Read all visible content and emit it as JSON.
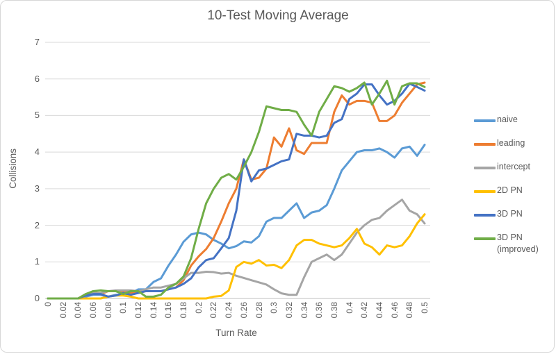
{
  "chart": {
    "title": "10-Test Moving Average",
    "x_axis_label": "Turn Rate",
    "y_axis_label": "Collisions"
  },
  "legend": {
    "position": "right",
    "items": [
      "naive",
      "leading",
      "intercept",
      "2D PN",
      "3D PN",
      "3D PN (improved)"
    ]
  },
  "colors": {
    "grid_line": "#d9d9d9",
    "axis_line": "#bfbfbf",
    "text": "#595959"
  },
  "chart_data": {
    "type": "line",
    "title": "10-Test Moving Average",
    "xlabel": "Turn Rate",
    "ylabel": "Collisions",
    "xlim": [
      0,
      0.5
    ],
    "ylim": [
      0,
      7
    ],
    "grid": "horizontal",
    "legend_position": "right",
    "y_ticks": [
      0,
      1,
      2,
      3,
      4,
      5,
      6,
      7
    ],
    "x_ticks": [
      "0",
      "0.02",
      "0.04",
      "0.06",
      "0.08",
      "0.1",
      "0.12",
      "0.14",
      "0.16",
      "0.18",
      "0.2",
      "0.22",
      "0.24",
      "0.26",
      "0.28",
      "0.3",
      "0.32",
      "0.34",
      "0.36",
      "0.38",
      "0.4",
      "0.42",
      "0.44",
      "0.46",
      "0.48",
      "0.5"
    ],
    "x": [
      0,
      0.01,
      0.02,
      0.03,
      0.04,
      0.05,
      0.06,
      0.07,
      0.08,
      0.09,
      0.1,
      0.11,
      0.12,
      0.13,
      0.14,
      0.15,
      0.16,
      0.17,
      0.18,
      0.19,
      0.2,
      0.21,
      0.22,
      0.23,
      0.24,
      0.25,
      0.26,
      0.27,
      0.28,
      0.29,
      0.3,
      0.31,
      0.32,
      0.33,
      0.34,
      0.35,
      0.36,
      0.37,
      0.38,
      0.39,
      0.4,
      0.41,
      0.42,
      0.43,
      0.44,
      0.45,
      0.46,
      0.47,
      0.48,
      0.49,
      0.5
    ],
    "series": [
      {
        "name": "naive",
        "color": "#5B9BD5",
        "values": [
          0,
          0,
          0,
          0,
          0,
          0.05,
          0.1,
          0.1,
          0.05,
          0.1,
          0.1,
          0.15,
          0.25,
          0.25,
          0.45,
          0.55,
          0.9,
          1.2,
          1.55,
          1.75,
          1.8,
          1.75,
          1.6,
          1.5,
          1.37,
          1.43,
          1.56,
          1.53,
          1.7,
          2.1,
          2.2,
          2.2,
          2.4,
          2.6,
          2.2,
          2.35,
          2.4,
          2.55,
          3.0,
          3.5,
          3.75,
          4.0,
          4.05,
          4.05,
          4.1,
          4.0,
          3.85,
          4.1,
          4.15,
          3.9,
          4.2
        ]
      },
      {
        "name": "leading",
        "color": "#ED7D31",
        "values": [
          0,
          0,
          0,
          0,
          0,
          0.1,
          0.18,
          0.12,
          0.2,
          0.2,
          0.2,
          0.15,
          0.15,
          0.2,
          0.2,
          0.2,
          0.25,
          0.3,
          0.5,
          0.9,
          1.15,
          1.35,
          1.65,
          2.1,
          2.6,
          3.0,
          3.8,
          3.25,
          3.3,
          3.55,
          4.4,
          4.15,
          4.65,
          4.05,
          3.95,
          4.25,
          4.25,
          4.25,
          5.1,
          5.55,
          5.3,
          5.4,
          5.4,
          5.35,
          4.85,
          4.85,
          5.0,
          5.35,
          5.6,
          5.85,
          5.9
        ]
      },
      {
        "name": "intercept",
        "color": "#A5A5A5",
        "values": [
          0,
          0,
          0,
          0,
          0,
          0.1,
          0.15,
          0.15,
          0.2,
          0.22,
          0.22,
          0.22,
          0.2,
          0.25,
          0.3,
          0.3,
          0.35,
          0.4,
          0.55,
          0.7,
          0.7,
          0.73,
          0.72,
          0.68,
          0.7,
          0.62,
          0.56,
          0.5,
          0.44,
          0.38,
          0.25,
          0.14,
          0.1,
          0.1,
          0.58,
          1.0,
          1.1,
          1.2,
          1.05,
          1.2,
          1.5,
          1.8,
          2.0,
          2.15,
          2.2,
          2.4,
          2.55,
          2.7,
          2.4,
          2.3,
          2.05
        ]
      },
      {
        "name": "2D PN",
        "color": "#FFC000",
        "values": [
          0,
          0,
          0,
          0,
          0,
          0,
          0,
          0,
          0.05,
          0.08,
          0.08,
          0.05,
          0,
          0,
          0,
          0,
          0,
          0,
          0,
          0,
          0,
          0,
          0.05,
          0.07,
          0.22,
          0.86,
          1.0,
          0.95,
          1.05,
          0.9,
          0.92,
          0.83,
          1.05,
          1.45,
          1.6,
          1.6,
          1.5,
          1.45,
          1.4,
          1.45,
          1.65,
          1.9,
          1.5,
          1.4,
          1.2,
          1.45,
          1.4,
          1.45,
          1.7,
          2.05,
          2.3
        ]
      },
      {
        "name": "3D PN",
        "color": "#4472C4",
        "values": [
          0,
          0,
          0,
          0,
          0,
          0.08,
          0.12,
          0.12,
          0.05,
          0.08,
          0.15,
          0.1,
          0.15,
          0.2,
          0.2,
          0.2,
          0.25,
          0.3,
          0.4,
          0.55,
          0.85,
          1.05,
          1.1,
          1.37,
          1.65,
          2.4,
          3.8,
          3.2,
          3.5,
          3.55,
          3.65,
          3.75,
          3.8,
          4.5,
          4.45,
          4.45,
          4.4,
          4.45,
          4.8,
          4.9,
          5.45,
          5.6,
          5.85,
          5.85,
          5.55,
          5.3,
          5.4,
          5.6,
          5.87,
          5.78,
          5.68
        ]
      },
      {
        "name": "3D PN (improved)",
        "color": "#70AD47",
        "values": [
          0,
          0,
          0,
          0,
          0,
          0.12,
          0.2,
          0.22,
          0.2,
          0.2,
          0.12,
          0.2,
          0.2,
          0.05,
          0.05,
          0.1,
          0.3,
          0.4,
          0.6,
          1.1,
          1.9,
          2.6,
          3.0,
          3.3,
          3.4,
          3.25,
          3.6,
          4.0,
          4.55,
          5.25,
          5.2,
          5.15,
          5.15,
          5.1,
          4.75,
          4.45,
          5.1,
          5.45,
          5.8,
          5.75,
          5.65,
          5.75,
          5.9,
          5.3,
          5.6,
          5.95,
          5.3,
          5.8,
          5.88,
          5.88,
          5.78
        ]
      }
    ]
  }
}
